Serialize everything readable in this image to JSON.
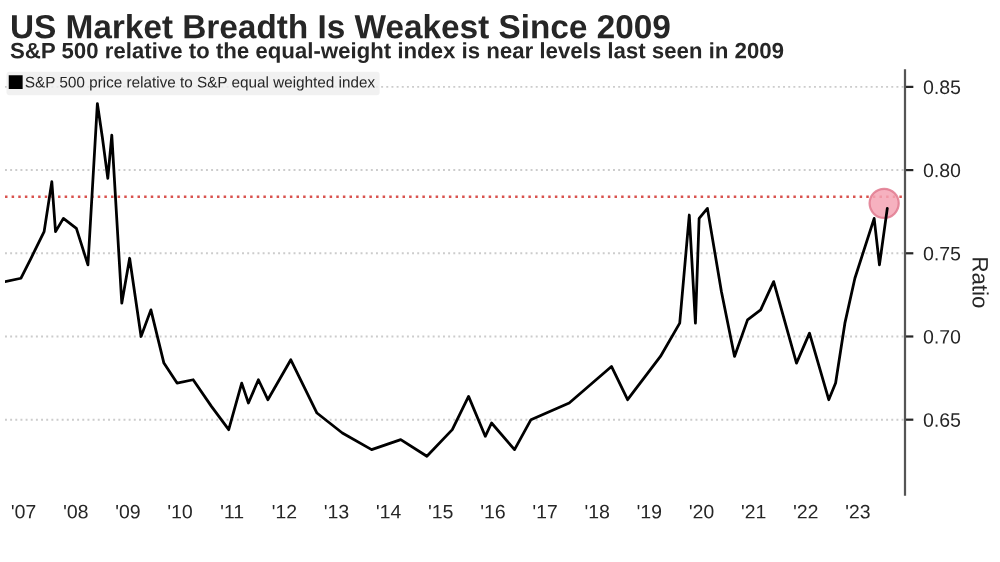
{
  "chart_data": {
    "type": "line",
    "title": "US Market Breadth Is Weakest Since 2009",
    "subtitle": "S&P 500 relative to the equal-weight index is near levels last seen in 2009",
    "ylabel": "Ratio",
    "x": [
      "2007-02-21",
      "2007-06-13",
      "2007-08-22",
      "2007-11-22",
      "2008-01-15",
      "2008-02-10",
      "2008-04-05",
      "2008-07-05",
      "2008-09-24",
      "2008-11-29",
      "2009-01-04",
      "2009-02-10",
      "2009-03-10",
      "2009-05-19",
      "2009-07-13",
      "2009-10-01",
      "2009-12-09",
      "2010-03-10",
      "2010-06-10",
      "2010-10-01",
      "2011-02-06",
      "2011-06-07",
      "2011-09-06",
      "2011-10-23",
      "2012-01-01",
      "2012-03-07",
      "2012-08-15",
      "2013-02-14",
      "2013-08-11",
      "2014-03-04",
      "2014-09-24",
      "2015-03-26",
      "2015-09-20",
      "2016-01-12",
      "2016-05-08",
      "2016-06-21",
      "2016-11-29",
      "2017-03-24",
      "2017-12-17",
      "2018-10-09",
      "2019-01-30",
      "2019-09-17",
      "2020-01-30",
      "2020-04-06",
      "2020-05-19",
      "2020-06-14",
      "2020-08-11",
      "2020-11-17",
      "2021-02-17",
      "2021-05-19",
      "2021-08-19",
      "2021-11-18",
      "2022-04-27",
      "2022-07-27",
      "2022-12-09",
      "2023-01-26",
      "2023-04-01",
      "2023-06-10",
      "2023-10-23",
      "2023-11-29",
      "2024-01-23"
    ],
    "series": [
      {
        "name": "S&P 500 price relative to S&P equal weighted index",
        "color": "#000000",
        "values": [
          0.733,
          0.735,
          0.747,
          0.763,
          0.793,
          0.763,
          0.771,
          0.765,
          0.743,
          0.84,
          0.819,
          0.795,
          0.821,
          0.72,
          0.747,
          0.7,
          0.716,
          0.684,
          0.672,
          0.674,
          0.658,
          0.644,
          0.672,
          0.66,
          0.674,
          0.662,
          0.686,
          0.654,
          0.642,
          0.632,
          0.638,
          0.628,
          0.644,
          0.664,
          0.64,
          0.648,
          0.632,
          0.65,
          0.66,
          0.682,
          0.662,
          0.688,
          0.708,
          0.773,
          0.708,
          0.771,
          0.777,
          0.727,
          0.688,
          0.71,
          0.716,
          0.733,
          0.684,
          0.702,
          0.662,
          0.672,
          0.708,
          0.735,
          0.771,
          0.743,
          0.777
        ]
      },
      {
        "type": "scatter",
        "marker": "circle",
        "color": "#f4a3b4",
        "x": [
          "2024-01-01"
        ],
        "values": [
          0.78
        ]
      }
    ],
    "ref_lines": [
      {
        "axis": "y",
        "value": 0.784,
        "color": "#d9534f",
        "line_style": "dotted"
      }
    ],
    "xlim": [
      "2007-02-21",
      "2024-05-26"
    ],
    "xticks": [
      {
        "value": "2007-07",
        "label": "'07"
      },
      {
        "value": "2008-07",
        "label": "'08"
      },
      {
        "value": "2009-07",
        "label": "'09"
      },
      {
        "value": "2010-07",
        "label": "'10"
      },
      {
        "value": "2011-07",
        "label": "'11"
      },
      {
        "value": "2012-07",
        "label": "'12"
      },
      {
        "value": "2013-07",
        "label": "'13"
      },
      {
        "value": "2014-07",
        "label": "'14"
      },
      {
        "value": "2015-07",
        "label": "'15"
      },
      {
        "value": "2016-07",
        "label": "'16"
      },
      {
        "value": "2017-07",
        "label": "'17"
      },
      {
        "value": "2018-07",
        "label": "'18"
      },
      {
        "value": "2019-07",
        "label": "'19"
      },
      {
        "value": "2020-07",
        "label": "'20"
      },
      {
        "value": "2021-07",
        "label": "'21"
      },
      {
        "value": "2022-07",
        "label": "'22"
      },
      {
        "value": "2023-07",
        "label": "'23"
      }
    ],
    "ylim": [
      0.605,
      0.86
    ],
    "yticks": [
      0.65,
      {
        "value": 0.7,
        "label": "0.70"
      },
      0.75,
      {
        "value": 0.8,
        "label": "0.80"
      },
      0.85
    ],
    "grid": "y",
    "legend": "top left",
    "line_style": "solid"
  }
}
